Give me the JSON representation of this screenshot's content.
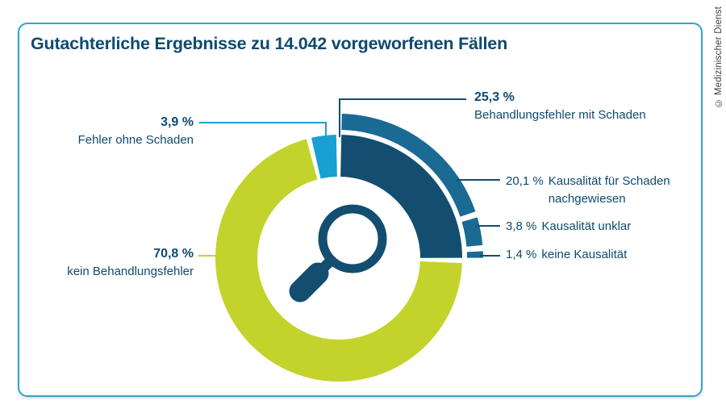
{
  "window": {
    "copyright": "© Medizinischer Dienst"
  },
  "header": {
    "title": "Gutachterliche Ergebnisse zu 14.042 vorgeworfenen Fällen"
  },
  "chart_data": {
    "type": "donut",
    "title": "Gutachterliche Ergebnisse zu 14.042 vorgeworfenen Fällen",
    "total_cases_text": "14.042",
    "unit": "%",
    "inner_ring_segments": [
      {
        "id": "behandlungsfehler-mit-schaden",
        "label": "Behandlungsfehler mit Schaden",
        "value": 25.3,
        "value_text": "25,3 %",
        "color": "#134e70"
      },
      {
        "id": "kein-behandlungsfehler",
        "label": "kein Behandlungsfehler",
        "value": 70.8,
        "value_text": "70,8 %",
        "color": "#c3d32b"
      },
      {
        "id": "fehler-ohne-schaden",
        "label": "Fehler ohne Schaden",
        "value": 3.9,
        "value_text": "3,9 %",
        "color": "#18a0d2"
      }
    ],
    "outer_ring": {
      "color": "#1a6a94",
      "parent_segment": "Behandlungsfehler mit Schaden",
      "segments": [
        {
          "id": "kausalitaet-fuer-schaden-nachgewiesen",
          "label": "Kausalität für Schaden nachgewiesen",
          "value": 20.1,
          "value_text": "20,1 %"
        },
        {
          "id": "kausalitaet-unklar",
          "label": "Kausalität unklar",
          "value": 3.8,
          "value_text": "3,8 %"
        },
        {
          "id": "keine-kausalitaet",
          "label": "keine Kausalität",
          "value": 1.4,
          "value_text": "1,4 %"
        }
      ]
    },
    "center_icon": {
      "name": "magnifier-icon",
      "color": "#134e70"
    },
    "layout_hints": {
      "start_angle_deg": 0,
      "direction": "clockwise",
      "legend_position": "callouts"
    }
  }
}
